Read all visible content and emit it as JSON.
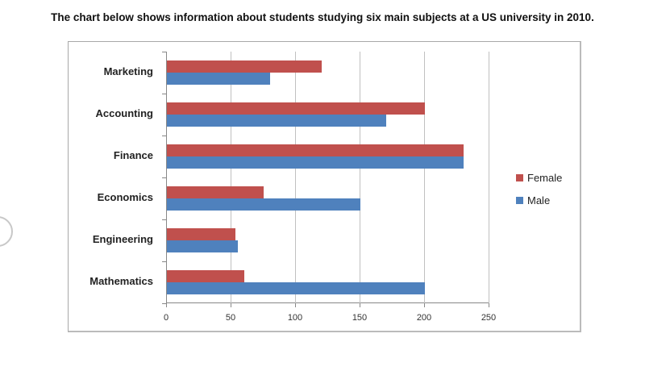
{
  "title": "The chart below shows information about students studying six main subjects at a US university in 2010.",
  "legend": [
    {
      "label": "Female",
      "color": "#c0504d"
    },
    {
      "label": "Male",
      "color": "#4f81bd"
    }
  ],
  "x_ticks": [
    "0",
    "50",
    "100",
    "150",
    "200",
    "250"
  ],
  "categories": [
    "Marketing",
    "Accounting",
    "Finance",
    "Economics",
    "Engineering",
    "Mathematics"
  ],
  "chart_data": {
    "type": "bar",
    "orientation": "horizontal",
    "title": "The chart below shows information about students studying six main subjects at a US university in 2010.",
    "categories": [
      "Marketing",
      "Accounting",
      "Finance",
      "Economics",
      "Engineering",
      "Mathematics"
    ],
    "series": [
      {
        "name": "Female",
        "color": "#c0504d",
        "values": [
          120,
          200,
          230,
          75,
          53,
          60
        ]
      },
      {
        "name": "Male",
        "color": "#4f81bd",
        "values": [
          80,
          170,
          230,
          150,
          55,
          200
        ]
      }
    ],
    "xlabel": "",
    "ylabel": "",
    "xlim": [
      0,
      250
    ],
    "x_ticks": [
      0,
      50,
      100,
      150,
      200,
      250
    ],
    "grid": true,
    "legend_position": "right"
  }
}
